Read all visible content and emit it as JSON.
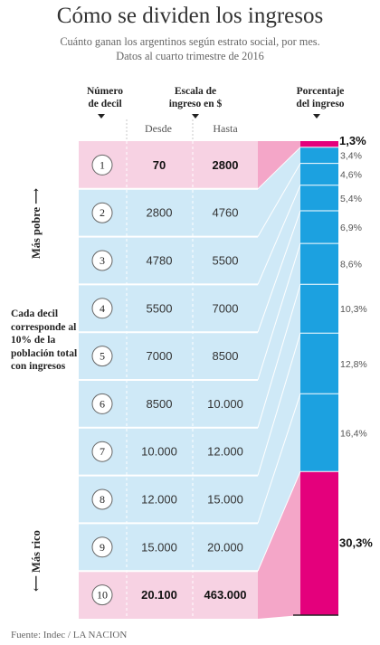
{
  "title": "Cómo se dividen los ingresos",
  "subtitle_line1": "Cuánto ganan los argentinos según estrato social, por mes.",
  "subtitle_line2": "Datos al cuarto trimestre de 2016",
  "headers": {
    "decil_line1": "Número",
    "decil_line2": "de decil",
    "escala_line1": "Escala de",
    "escala_line2": "ingreso en $",
    "desde": "Desde",
    "hasta": "Hasta",
    "pct_line1": "Porcentaje",
    "pct_line2": "del ingreso"
  },
  "labels": {
    "mas_pobre": "Más pobre ⟶",
    "mas_rico": "⟵ Más rico",
    "side_note": "Cada decil corresponde al 10% de la población total con ingresos",
    "source": "Fuente: Indec / LA NACION"
  },
  "colors": {
    "pink_light": "#f7d2e3",
    "blue_light": "#cfe9f7",
    "pink_mid": "#f4a6c8",
    "blue_bar": "#1ca1e0",
    "magenta": "#e4007c"
  },
  "chart_data": {
    "type": "table",
    "deciles": [
      "1",
      "2",
      "3",
      "4",
      "5",
      "6",
      "7",
      "8",
      "9",
      "10"
    ],
    "desde": [
      "70",
      "2800",
      "4780",
      "5500",
      "7000",
      "8500",
      "10.000",
      "12.000",
      "15.000",
      "20.100"
    ],
    "hasta": [
      "2800",
      "4760",
      "5500",
      "7000",
      "8500",
      "10.000",
      "12.000",
      "15.000",
      "20.000",
      "463.000"
    ],
    "bold_rows": [
      0,
      9
    ],
    "pct_values": [
      1.3,
      3.4,
      4.6,
      5.4,
      6.9,
      8.6,
      10.3,
      12.8,
      16.4,
      30.3
    ],
    "pct_labels": [
      "1,3%",
      "3,4%",
      "4,6%",
      "5,4%",
      "6,9%",
      "8,6%",
      "10,3%",
      "12,8%",
      "16,4%",
      "30,3%"
    ],
    "highlight_labels": [
      0,
      9
    ]
  }
}
